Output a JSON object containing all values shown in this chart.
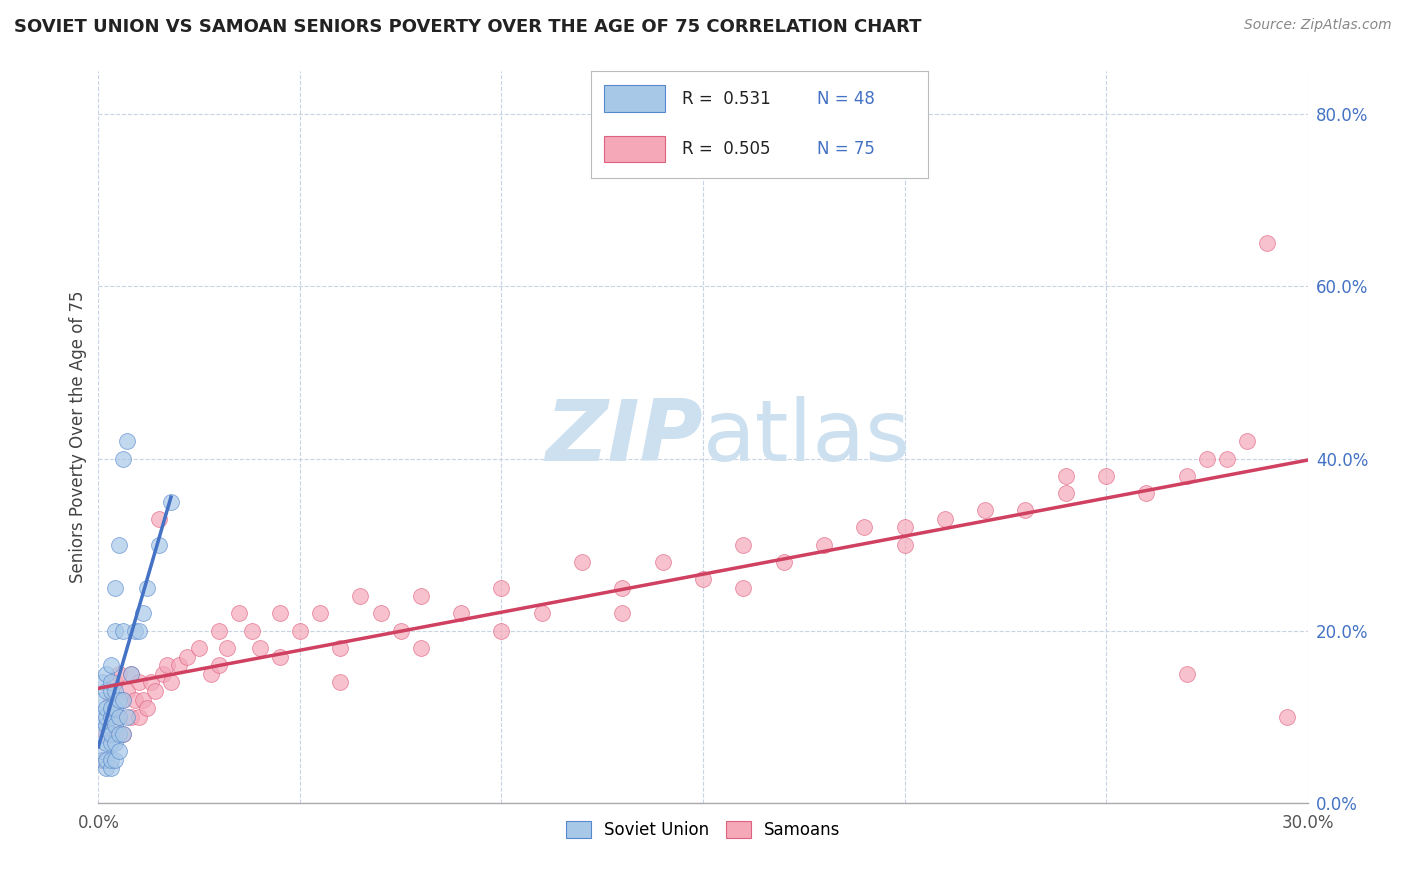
{
  "title": "SOVIET UNION VS SAMOAN SENIORS POVERTY OVER THE AGE OF 75 CORRELATION CHART",
  "source": "Source: ZipAtlas.com",
  "ylabel": "Seniors Poverty Over the Age of 75",
  "xlim": [
    0.0,
    0.3
  ],
  "ylim": [
    0.0,
    0.85
  ],
  "xtick_positions": [
    0.0,
    0.3
  ],
  "xticklabels": [
    "0.0%",
    "30.0%"
  ],
  "yticks_right": [
    0.0,
    0.2,
    0.4,
    0.6,
    0.8
  ],
  "ytick_right_labels": [
    "0.0%",
    "20.0%",
    "40.0%",
    "60.0%",
    "80.0%"
  ],
  "grid_xticks": [
    0.0,
    0.05,
    0.1,
    0.15,
    0.2,
    0.25,
    0.3
  ],
  "grid_yticks": [
    0.0,
    0.2,
    0.4,
    0.6,
    0.8
  ],
  "soviet_R": 0.531,
  "soviet_N": 48,
  "samoan_R": 0.505,
  "samoan_N": 75,
  "soviet_color": "#a8c8e8",
  "samoan_color": "#f4a8b8",
  "soviet_edge_color": "#5588cc",
  "samoan_edge_color": "#e06080",
  "soviet_line_color": "#4472c4",
  "samoan_line_color": "#d04060",
  "legend_text_color": "#4472c4",
  "watermark_color": "#cce0f0",
  "background_color": "#ffffff",
  "grid_color": "#c8d4e4",
  "soviet_scatter_x": [
    0.001,
    0.001,
    0.001,
    0.001,
    0.001,
    0.001,
    0.002,
    0.002,
    0.002,
    0.002,
    0.002,
    0.002,
    0.002,
    0.002,
    0.003,
    0.003,
    0.003,
    0.003,
    0.003,
    0.003,
    0.003,
    0.003,
    0.003,
    0.004,
    0.004,
    0.004,
    0.004,
    0.004,
    0.004,
    0.004,
    0.005,
    0.005,
    0.005,
    0.005,
    0.005,
    0.006,
    0.006,
    0.006,
    0.006,
    0.007,
    0.007,
    0.008,
    0.009,
    0.01,
    0.011,
    0.012,
    0.015,
    0.018
  ],
  "soviet_scatter_y": [
    0.05,
    0.06,
    0.08,
    0.1,
    0.12,
    0.14,
    0.04,
    0.05,
    0.07,
    0.09,
    0.1,
    0.11,
    0.13,
    0.15,
    0.04,
    0.05,
    0.07,
    0.08,
    0.1,
    0.11,
    0.13,
    0.14,
    0.16,
    0.05,
    0.07,
    0.09,
    0.11,
    0.13,
    0.2,
    0.25,
    0.06,
    0.08,
    0.1,
    0.12,
    0.3,
    0.08,
    0.12,
    0.2,
    0.4,
    0.1,
    0.42,
    0.15,
    0.2,
    0.2,
    0.22,
    0.25,
    0.3,
    0.35
  ],
  "samoan_scatter_x": [
    0.001,
    0.002,
    0.003,
    0.003,
    0.004,
    0.004,
    0.005,
    0.005,
    0.006,
    0.006,
    0.007,
    0.008,
    0.008,
    0.009,
    0.01,
    0.01,
    0.011,
    0.012,
    0.013,
    0.014,
    0.015,
    0.016,
    0.017,
    0.018,
    0.02,
    0.022,
    0.025,
    0.028,
    0.03,
    0.032,
    0.035,
    0.038,
    0.04,
    0.045,
    0.05,
    0.055,
    0.06,
    0.065,
    0.07,
    0.075,
    0.08,
    0.09,
    0.1,
    0.11,
    0.12,
    0.13,
    0.14,
    0.15,
    0.16,
    0.17,
    0.18,
    0.19,
    0.2,
    0.21,
    0.22,
    0.23,
    0.24,
    0.25,
    0.26,
    0.27,
    0.275,
    0.28,
    0.285,
    0.29,
    0.295,
    0.03,
    0.045,
    0.06,
    0.08,
    0.1,
    0.13,
    0.16,
    0.2,
    0.24,
    0.27
  ],
  "samoan_scatter_y": [
    0.05,
    0.08,
    0.1,
    0.12,
    0.08,
    0.14,
    0.1,
    0.15,
    0.08,
    0.12,
    0.13,
    0.1,
    0.15,
    0.12,
    0.1,
    0.14,
    0.12,
    0.11,
    0.14,
    0.13,
    0.33,
    0.15,
    0.16,
    0.14,
    0.16,
    0.17,
    0.18,
    0.15,
    0.2,
    0.18,
    0.22,
    0.2,
    0.18,
    0.22,
    0.2,
    0.22,
    0.18,
    0.24,
    0.22,
    0.2,
    0.24,
    0.22,
    0.25,
    0.22,
    0.28,
    0.25,
    0.28,
    0.26,
    0.3,
    0.28,
    0.3,
    0.32,
    0.3,
    0.33,
    0.34,
    0.34,
    0.36,
    0.38,
    0.36,
    0.38,
    0.4,
    0.4,
    0.42,
    0.65,
    0.1,
    0.16,
    0.17,
    0.14,
    0.18,
    0.2,
    0.22,
    0.25,
    0.32,
    0.38,
    0.15
  ]
}
